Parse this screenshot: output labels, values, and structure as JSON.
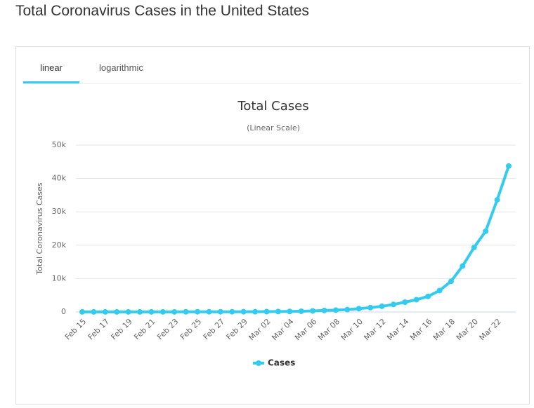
{
  "page_title": "Total Coronavirus Cases in the United States",
  "tabs": [
    "linear",
    "logarithmic"
  ],
  "chart_data": {
    "type": "line",
    "title": "Total Cases",
    "subtitle": "(Linear Scale)",
    "y_label": "Total Coronavirus Cases",
    "categories": [
      "Feb 15",
      null,
      "Feb 17",
      null,
      "Feb 19",
      null,
      "Feb 21",
      null,
      "Feb 23",
      null,
      "Feb 25",
      null,
      "Feb 27",
      null,
      "Feb 29",
      null,
      "Mar 02",
      null,
      "Mar 04",
      null,
      "Mar 06",
      null,
      "Mar 08",
      null,
      "Mar 10",
      null,
      "Mar 12",
      null,
      "Mar 14",
      null,
      "Mar 16",
      null,
      "Mar 18",
      null,
      "Mar 20",
      null,
      "Mar 22",
      null
    ],
    "series": [
      {
        "name": "Cases",
        "color": "#33ccee",
        "values": [
          15,
          15,
          15,
          15,
          15,
          15,
          35,
          35,
          35,
          53,
          57,
          60,
          60,
          62,
          68,
          75,
          100,
          124,
          158,
          221,
          319,
          435,
          541,
          704,
          994,
          1301,
          1697,
          2247,
          2943,
          3680,
          4663,
          6411,
          9197,
          13779,
          19367,
          24192,
          33592,
          43734
        ]
      }
    ],
    "ylim": [
      0,
      50000
    ],
    "yticks": [
      0,
      {
        "value": 10000,
        "label": "10k"
      },
      {
        "value": 20000,
        "label": "20k"
      },
      {
        "value": 30000,
        "label": "30k"
      },
      {
        "value": 40000,
        "label": "40k"
      },
      {
        "value": 50000,
        "label": "50k"
      }
    ],
    "grid": true
  }
}
